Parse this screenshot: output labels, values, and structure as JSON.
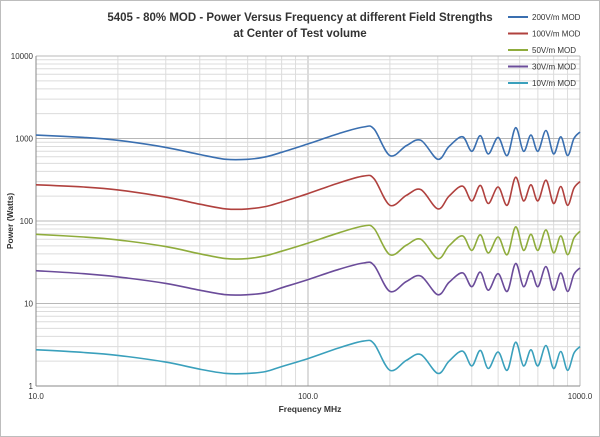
{
  "chart_data": {
    "type": "line",
    "title": "5405 - 80% MOD - Power Versus Frequency at different Field Strengths",
    "subtitle": "at Center of Test volume",
    "xlabel": "Frequency MHz",
    "ylabel": "Power (Watts)",
    "xscale": "log",
    "yscale": "log",
    "xlim": [
      10,
      1000
    ],
    "ylim": [
      1,
      10000
    ],
    "xticks": [
      "10.0",
      "100.0",
      "1000.0"
    ],
    "yticks": [
      "1",
      "10",
      "100",
      "1000",
      "10000"
    ],
    "grid": true,
    "legend_position": "top-right",
    "x": [
      10,
      15,
      20,
      30,
      40,
      50,
      60,
      70,
      80,
      100,
      130,
      160,
      175,
      200,
      230,
      260,
      300,
      330,
      370,
      400,
      430,
      460,
      500,
      540,
      580,
      620,
      660,
      700,
      750,
      800,
      850,
      900,
      950,
      1000
    ],
    "series": [
      {
        "name": "200V/m MOD",
        "color": "#3a6fb0",
        "values": [
          1100,
          1030,
          950,
          780,
          640,
          560,
          560,
          600,
          680,
          860,
          1150,
          1380,
          1300,
          620,
          820,
          950,
          560,
          800,
          1050,
          700,
          1080,
          650,
          1030,
          620,
          1350,
          700,
          1100,
          700,
          1250,
          650,
          1050,
          620,
          1000,
          1200
        ]
      },
      {
        "name": "100V/m MOD",
        "color": "#b0413e",
        "values": [
          275,
          258,
          238,
          195,
          160,
          140,
          140,
          150,
          170,
          215,
          290,
          350,
          325,
          155,
          205,
          240,
          140,
          200,
          265,
          175,
          270,
          163,
          258,
          155,
          340,
          175,
          275,
          175,
          312,
          163,
          262,
          155,
          250,
          300
        ]
      },
      {
        "name": "50V/m MOD",
        "color": "#8fac3c",
        "values": [
          69,
          64,
          59,
          49,
          40,
          35,
          35,
          38,
          43,
          54,
          72,
          87,
          81,
          39,
          51,
          60,
          35,
          50,
          66,
          44,
          68,
          41,
          64,
          39,
          85,
          44,
          69,
          44,
          78,
          41,
          66,
          39,
          62,
          75
        ]
      },
      {
        "name": "30V/m MOD",
        "color": "#6b4c9a",
        "values": [
          25,
          23,
          21,
          17.5,
          14.5,
          12.8,
          12.8,
          13.5,
          15.5,
          19.5,
          26,
          31,
          29,
          14,
          18.5,
          21.5,
          12.8,
          18,
          23.5,
          16,
          24,
          14.5,
          23,
          14,
          30.5,
          16,
          25,
          16,
          28,
          14.5,
          23.5,
          14,
          22.5,
          27
        ]
      },
      {
        "name": "10V/m MOD",
        "color": "#3aa0bc",
        "values": [
          2.75,
          2.55,
          2.35,
          1.95,
          1.6,
          1.42,
          1.42,
          1.5,
          1.72,
          2.15,
          2.9,
          3.5,
          3.25,
          1.55,
          2.05,
          2.4,
          1.42,
          2.0,
          2.65,
          1.75,
          2.7,
          1.63,
          2.58,
          1.55,
          3.4,
          1.75,
          2.75,
          1.75,
          3.1,
          1.63,
          2.62,
          1.55,
          2.5,
          3.0
        ]
      }
    ]
  }
}
